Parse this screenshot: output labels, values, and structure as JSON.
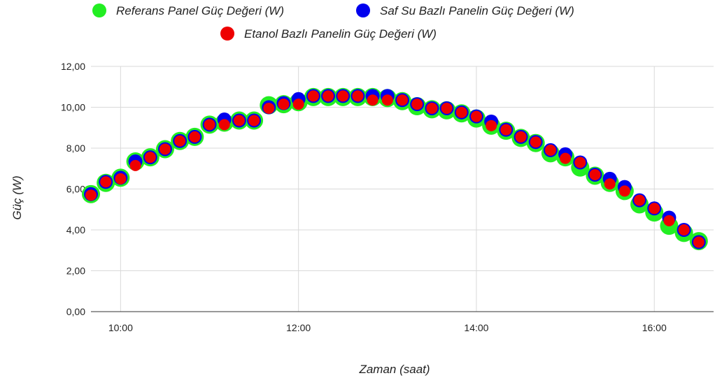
{
  "chart_data": {
    "type": "scatter",
    "title": "",
    "xlabel": "Zaman (saat)",
    "ylabel": "Güç (W)",
    "legend_position": "top",
    "grid": true,
    "xlim": [
      "09:40",
      "16:40"
    ],
    "ylim": [
      0,
      12
    ],
    "x_ticks": [
      "10:00",
      "12:00",
      "14:00",
      "16:00"
    ],
    "y_ticks": [
      "0,00",
      "2,00",
      "4,00",
      "6,00",
      "8,00",
      "10,00",
      "12,00"
    ],
    "x": [
      "09:40",
      "09:50",
      "10:00",
      "10:10",
      "10:20",
      "10:30",
      "10:40",
      "10:50",
      "11:00",
      "11:10",
      "11:20",
      "11:30",
      "11:40",
      "11:50",
      "12:00",
      "12:10",
      "12:20",
      "12:30",
      "12:40",
      "12:50",
      "13:00",
      "13:10",
      "13:20",
      "13:30",
      "13:40",
      "13:50",
      "14:00",
      "14:10",
      "14:20",
      "14:30",
      "14:40",
      "14:50",
      "15:00",
      "15:10",
      "15:20",
      "15:30",
      "15:40",
      "15:50",
      "16:00",
      "16:10",
      "16:20",
      "16:30"
    ],
    "series": [
      {
        "name": "Referans Panel Güç Değeri (W)",
        "color": "#22ee22",
        "values": [
          5.75,
          6.3,
          6.55,
          7.35,
          7.55,
          7.95,
          8.35,
          8.55,
          9.15,
          9.25,
          9.35,
          9.35,
          10.1,
          10.15,
          10.25,
          10.5,
          10.5,
          10.5,
          10.5,
          10.5,
          10.45,
          10.3,
          10.05,
          9.9,
          9.85,
          9.7,
          9.45,
          9.1,
          8.85,
          8.5,
          8.25,
          7.75,
          7.55,
          7.05,
          6.65,
          6.3,
          5.9,
          5.25,
          4.85,
          4.2,
          3.85,
          3.45
        ]
      },
      {
        "name": "Saf Su Bazlı Panelin Güç Değeri (W)",
        "color": "#0000ee",
        "values": [
          5.75,
          6.35,
          6.55,
          7.35,
          7.55,
          7.95,
          8.35,
          8.55,
          9.15,
          9.4,
          9.35,
          9.35,
          10.0,
          10.2,
          10.4,
          10.55,
          10.55,
          10.55,
          10.55,
          10.55,
          10.55,
          10.35,
          10.15,
          9.95,
          9.95,
          9.75,
          9.55,
          9.3,
          8.9,
          8.55,
          8.3,
          7.9,
          7.7,
          7.3,
          6.7,
          6.5,
          6.1,
          5.45,
          5.05,
          4.6,
          4.0,
          3.4
        ]
      },
      {
        "name": "Etanol Bazlı Panelin Güç Değeri (W)",
        "color": "#ee0000",
        "values": [
          5.7,
          6.35,
          6.5,
          7.15,
          7.55,
          7.95,
          8.35,
          8.55,
          9.15,
          9.15,
          9.35,
          9.35,
          9.95,
          10.15,
          10.15,
          10.55,
          10.55,
          10.55,
          10.55,
          10.35,
          10.35,
          10.35,
          10.15,
          9.95,
          9.95,
          9.75,
          9.55,
          9.1,
          8.9,
          8.55,
          8.3,
          7.9,
          7.5,
          7.3,
          6.7,
          6.25,
          5.9,
          5.45,
          5.05,
          4.45,
          4.0,
          3.4
        ]
      }
    ]
  }
}
